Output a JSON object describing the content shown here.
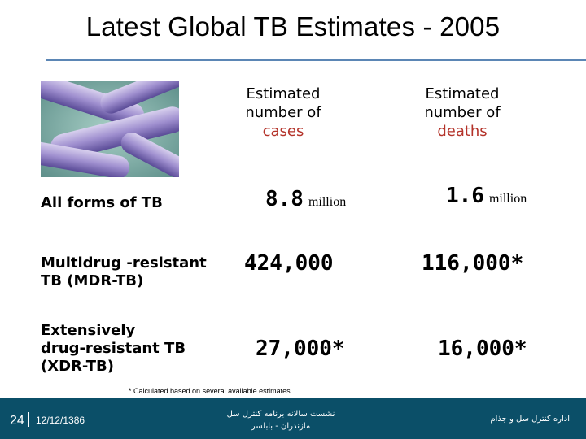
{
  "slide": {
    "title": "Latest Global TB Estimates - 2005",
    "footnote": "* Calculated based on several available estimates"
  },
  "columns": {
    "cases": {
      "line1": "Estimated",
      "line2": "number of",
      "line3": "cases"
    },
    "deaths": {
      "line1": "Estimated",
      "line2": "number of",
      "line3": "deaths"
    }
  },
  "rows": [
    {
      "label_lines": [
        "All forms of TB"
      ],
      "cases": "8.8",
      "cases_unit": "million",
      "deaths": "1.6",
      "deaths_unit": "million"
    },
    {
      "label_lines": [
        "Multidrug -resistant",
        "TB (MDR-TB)"
      ],
      "cases": "424,000",
      "deaths": "116,000*"
    },
    {
      "label_lines": [
        "Extensively",
        "drug-resistant TB",
        "(XDR-TB)"
      ],
      "cases": "27,000*",
      "deaths": "16,000*"
    }
  ],
  "footer": {
    "page_number": "24",
    "date": "12/12/1386",
    "center_line1": "نشست سالانه برنامه کنترل سل",
    "center_line2": "مازندران - بابلسر",
    "right_text": "اداره کنترل سل و جذام"
  },
  "colors": {
    "accent_text": "#b4332a",
    "title_rule": "#5b86b5",
    "footer_bar": "#0b4f68"
  }
}
